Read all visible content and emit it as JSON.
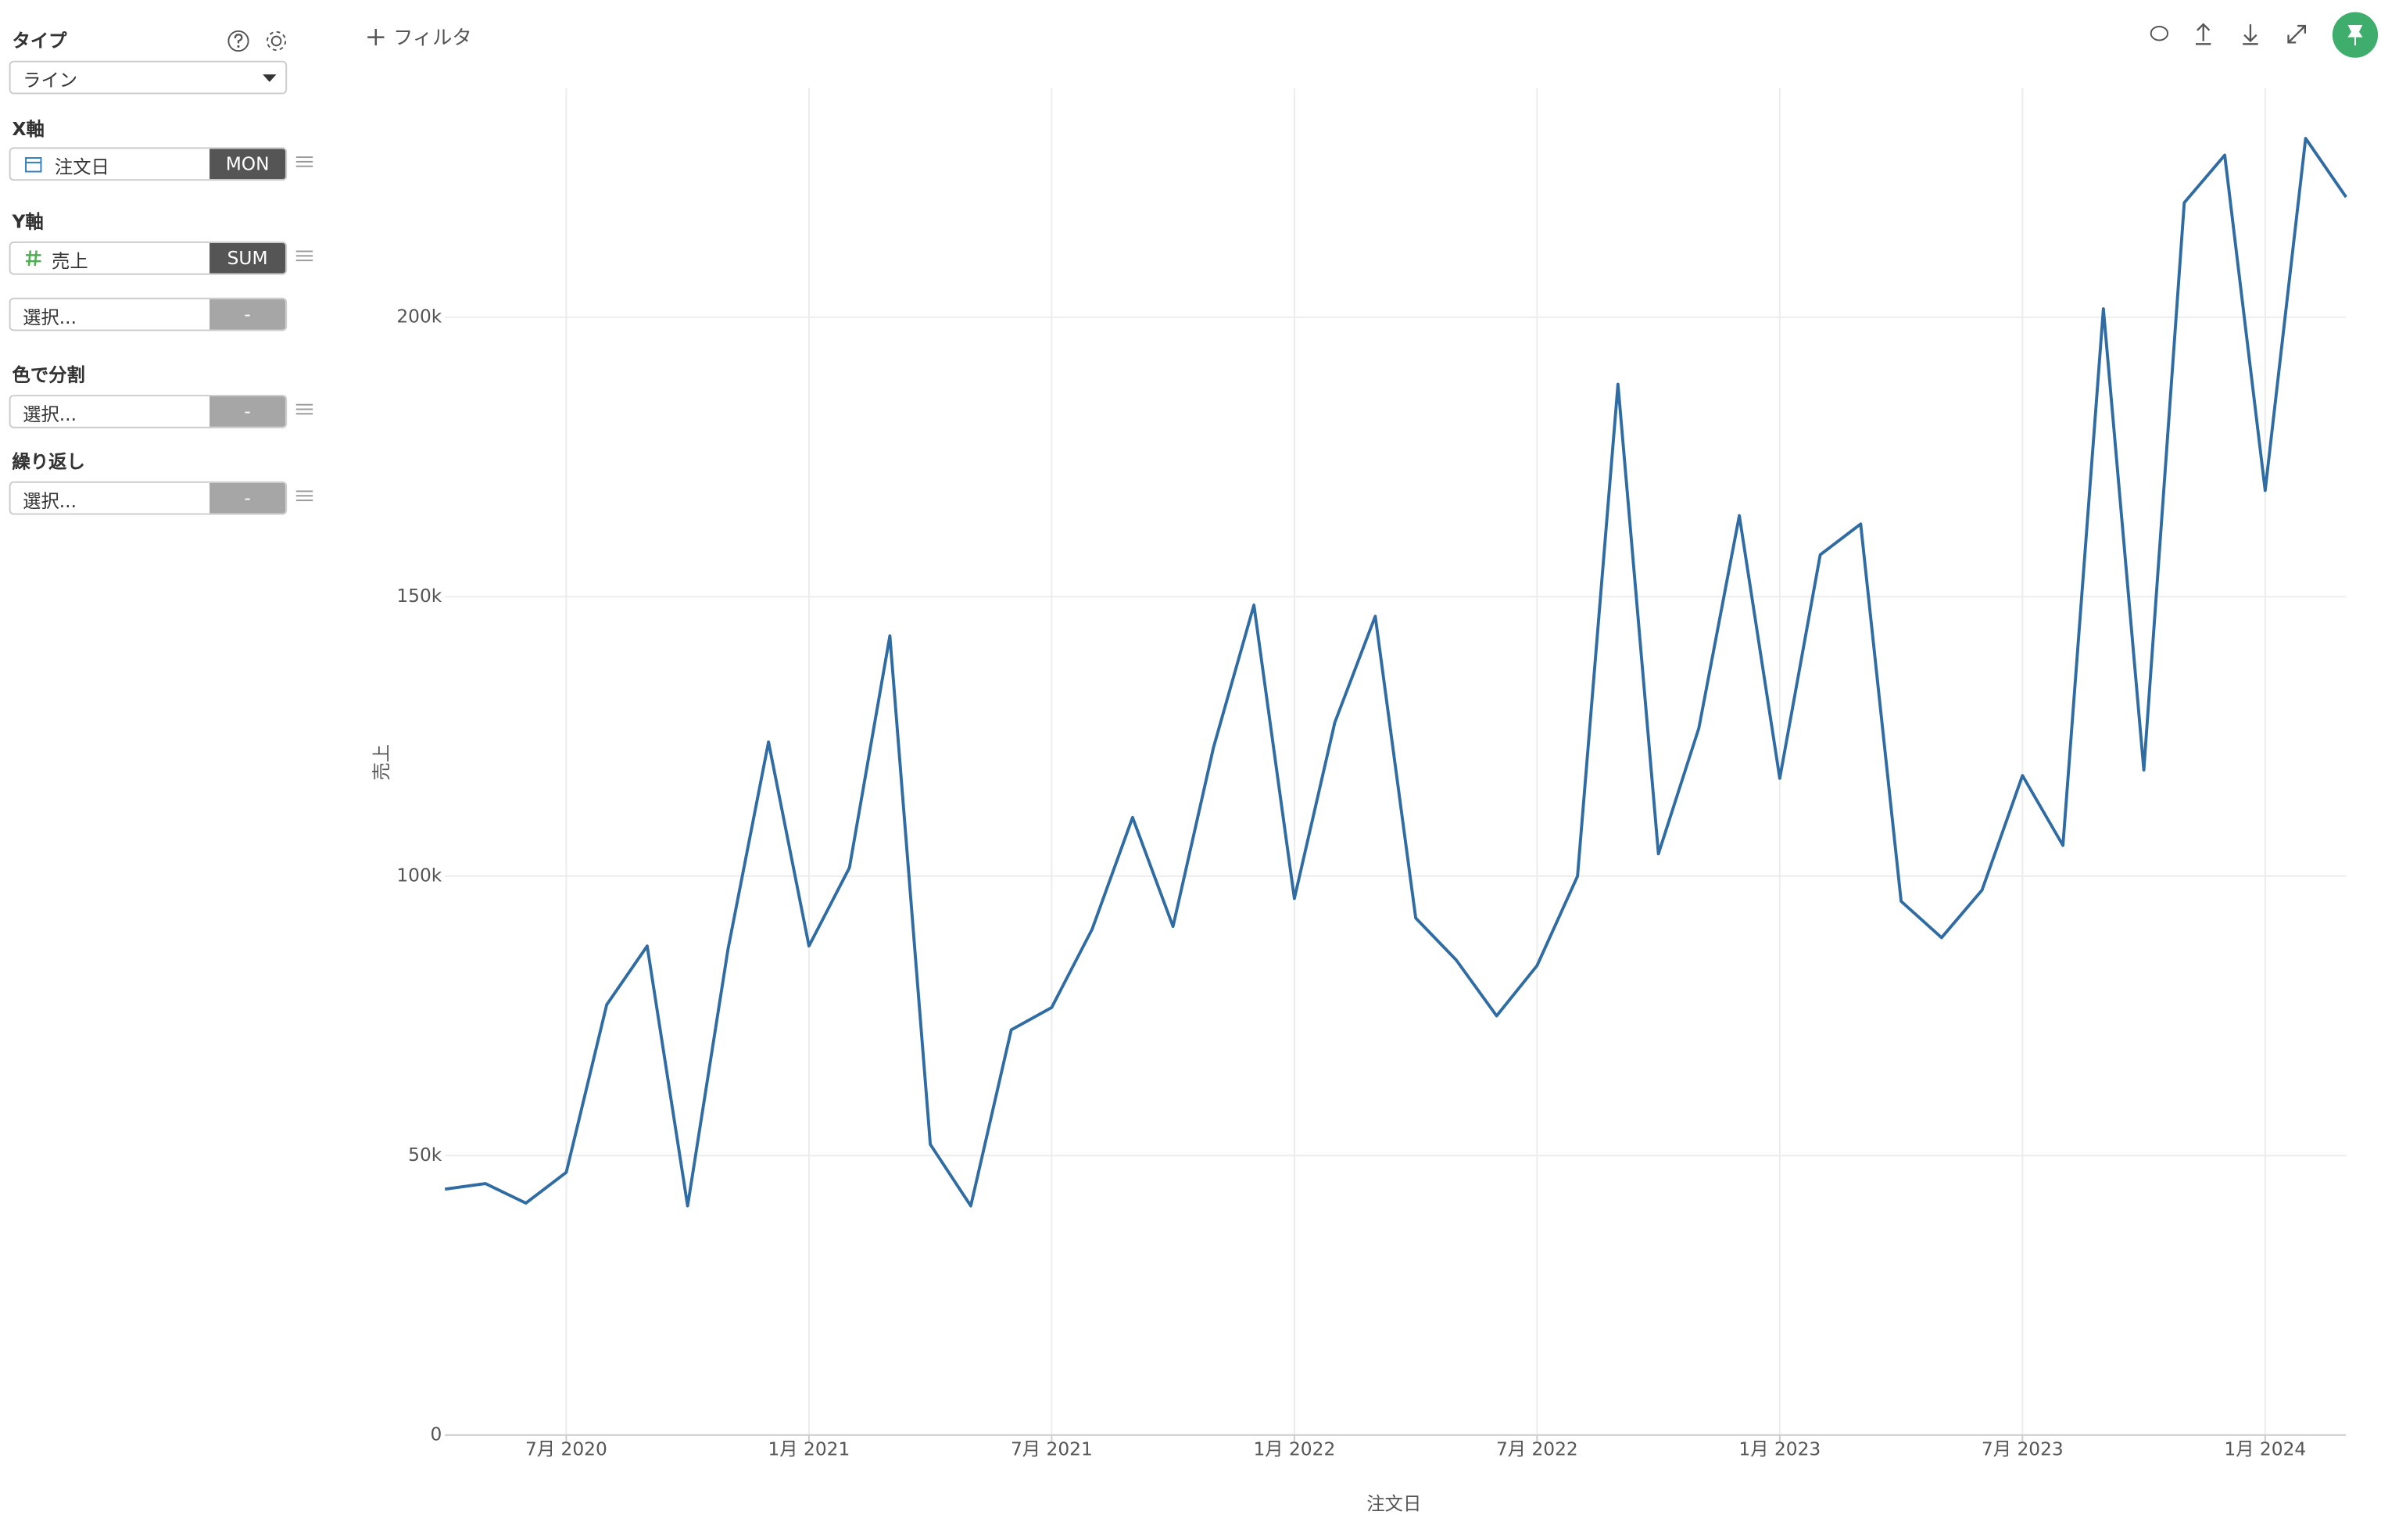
{
  "sidebar": {
    "type": {
      "label": "タイプ",
      "value": "ライン"
    },
    "x_axis": {
      "label": "X軸",
      "field": "注文日",
      "agg": "MON"
    },
    "y_axis": {
      "label": "Y軸",
      "field": "売上",
      "agg": "SUM",
      "extra": {
        "placeholder": "選択...",
        "agg": "-"
      }
    },
    "color": {
      "label": "色で分割",
      "placeholder": "選択...",
      "agg": "-"
    },
    "repeat": {
      "label": "繰り返し",
      "placeholder": "選択...",
      "agg": "-"
    }
  },
  "toolbar": {
    "filter": "フィルタ"
  },
  "chart_data": {
    "type": "line",
    "x_label": "注文日",
    "y_label": "売上",
    "color": "#2f6ca3",
    "grid": true,
    "x": [
      "2020-04",
      "2020-05",
      "2020-06",
      "2020-07",
      "2020-08",
      "2020-09",
      "2020-10",
      "2020-11",
      "2020-12",
      "2021-01",
      "2021-02",
      "2021-03",
      "2021-04",
      "2021-05",
      "2021-06",
      "2021-07",
      "2021-08",
      "2021-09",
      "2021-10",
      "2021-11",
      "2021-12",
      "2022-01",
      "2022-02",
      "2022-03",
      "2022-04",
      "2022-05",
      "2022-06",
      "2022-07",
      "2022-08",
      "2022-09",
      "2022-10",
      "2022-11",
      "2022-12",
      "2023-01",
      "2023-02",
      "2023-03",
      "2023-04",
      "2023-05",
      "2023-06",
      "2023-07",
      "2023-08",
      "2023-09",
      "2023-10",
      "2023-11",
      "2023-12",
      "2024-01",
      "2024-02",
      "2024-03"
    ],
    "series": [
      {
        "name": "売上",
        "color": "#2f6ca3",
        "values": [
          44000,
          45000,
          41500,
          47000,
          77000,
          87500,
          41000,
          87000,
          124000,
          87500,
          101500,
          143000,
          52000,
          41000,
          72500,
          76500,
          90500,
          110500,
          91000,
          123000,
          148500,
          96000,
          127500,
          146500,
          92500,
          85000,
          75000,
          84000,
          100000,
          188000,
          104000,
          126500,
          164500,
          117500,
          157500,
          163000,
          95500,
          89000,
          97500,
          118000,
          105500,
          201500,
          119000,
          220500,
          229000,
          169000,
          232000,
          221500
        ]
      }
    ],
    "xlim": [
      "2020-04",
      "2024-03"
    ],
    "xticks": [
      {
        "value": "2020-07",
        "label": "7月 2020"
      },
      {
        "value": "2021-01",
        "label": "1月 2021"
      },
      {
        "value": "2021-07",
        "label": "7月 2021"
      },
      {
        "value": "2022-01",
        "label": "1月 2022"
      },
      {
        "value": "2022-07",
        "label": "7月 2022"
      },
      {
        "value": "2023-01",
        "label": "1月 2023"
      },
      {
        "value": "2023-07",
        "label": "7月 2023"
      },
      {
        "value": "2024-01",
        "label": "1月 2024"
      }
    ],
    "ylim": [
      0,
      241000
    ],
    "yticks": [
      0,
      {
        "value": 50000,
        "label": "50k"
      },
      {
        "value": 100000,
        "label": "100k"
      },
      {
        "value": 150000,
        "label": "150k"
      },
      {
        "value": 200000,
        "label": "200k"
      }
    ]
  }
}
